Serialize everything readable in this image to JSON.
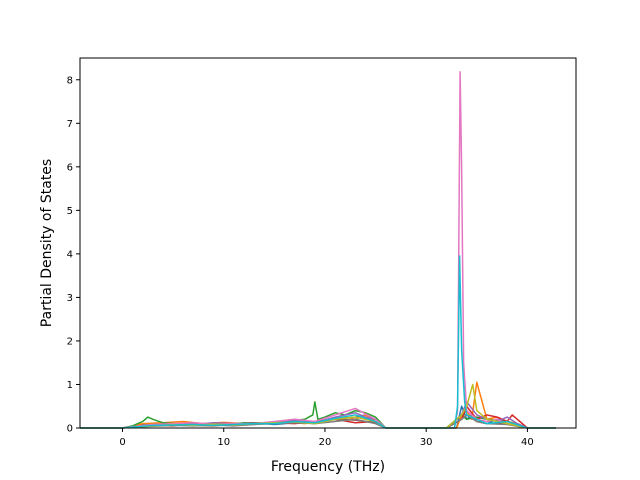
{
  "chart_data": {
    "type": "line",
    "title": "",
    "xlabel": "Frequency (THz)",
    "ylabel": "Partial Density of States",
    "xlim": [
      -4.2,
      44.8
    ],
    "ylim": [
      0,
      8.5
    ],
    "xticks": [
      0,
      10,
      20,
      30,
      40
    ],
    "yticks": [
      0,
      1,
      2,
      3,
      4,
      5,
      6,
      7,
      8
    ],
    "grid": false,
    "legend": "none",
    "colors": [
      "#1f77b4",
      "#ff7f0e",
      "#2ca02c",
      "#d62728",
      "#9467bd",
      "#8c564b",
      "#e377c2",
      "#7f7f7f",
      "#bcbd22",
      "#17becf"
    ],
    "series": [
      {
        "x": [
          -4.2,
          0,
          1,
          2,
          3,
          5,
          7,
          9,
          11,
          13,
          15,
          17,
          19,
          21,
          23,
          24,
          25,
          26,
          28,
          32,
          33.0,
          33.5,
          34.0,
          34.5,
          35,
          36,
          37,
          38,
          39,
          40,
          42.8
        ],
        "y": [
          0,
          0,
          0.03,
          0.08,
          0.1,
          0.07,
          0.09,
          0.06,
          0.1,
          0.12,
          0.08,
          0.12,
          0.15,
          0.2,
          0.25,
          0.3,
          0.2,
          0,
          0,
          0,
          0,
          0.5,
          0.2,
          0.3,
          0.15,
          0.1,
          0.2,
          0.15,
          0.1,
          0,
          0
        ]
      },
      {
        "x": [
          -4.2,
          0,
          1,
          2,
          4,
          6,
          8,
          10,
          12,
          14,
          16,
          18,
          20,
          22,
          23,
          24,
          25,
          26,
          28,
          32,
          33.0,
          33.5,
          34.0,
          34.5,
          35,
          36,
          37,
          38,
          39,
          40,
          42.8
        ],
        "y": [
          0,
          0,
          0.04,
          0.1,
          0.12,
          0.15,
          0.1,
          0.13,
          0.1,
          0.12,
          0.15,
          0.1,
          0.18,
          0.25,
          0.2,
          0.3,
          0.15,
          0,
          0,
          0,
          0,
          0.3,
          0.4,
          0.2,
          1.05,
          0.2,
          0.25,
          0.15,
          0.1,
          0,
          0
        ]
      },
      {
        "x": [
          -4.2,
          0,
          1,
          2,
          2.5,
          3,
          4,
          6,
          8,
          10,
          12,
          14,
          16,
          18,
          18.8,
          19,
          19.3,
          20,
          21,
          22,
          23,
          24,
          25,
          26,
          28,
          32,
          33.5,
          34,
          35,
          36,
          38,
          40,
          42.8
        ],
        "y": [
          0,
          0,
          0.05,
          0.15,
          0.25,
          0.2,
          0.12,
          0.08,
          0.1,
          0.07,
          0.12,
          0.1,
          0.15,
          0.2,
          0.3,
          0.6,
          0.2,
          0.25,
          0.35,
          0.3,
          0.4,
          0.35,
          0.25,
          0,
          0,
          0,
          0.3,
          0.2,
          0.25,
          0.2,
          0.15,
          0,
          0
        ]
      },
      {
        "x": [
          -4.2,
          0,
          1,
          3,
          5,
          7,
          9,
          11,
          13,
          15,
          17,
          19,
          21,
          23,
          25,
          26,
          28,
          32,
          33.5,
          34,
          35,
          36,
          37,
          38,
          38.5,
          39,
          40,
          42.8
        ],
        "y": [
          0,
          0,
          0.02,
          0.06,
          0.05,
          0.1,
          0.08,
          0.06,
          0.1,
          0.12,
          0.1,
          0.15,
          0.2,
          0.12,
          0.15,
          0,
          0,
          0,
          0.2,
          0.5,
          0.2,
          0.3,
          0.25,
          0.15,
          0.3,
          0.2,
          0,
          0
        ]
      },
      {
        "x": [
          -4.2,
          0,
          1,
          3,
          5,
          7,
          9,
          11,
          13,
          15,
          17,
          19,
          21,
          22,
          23,
          24,
          25,
          26,
          28,
          32,
          33.5,
          34,
          35,
          36,
          37,
          38,
          39,
          40,
          42.8
        ],
        "y": [
          0,
          0,
          0.03,
          0.07,
          0.1,
          0.08,
          0.12,
          0.1,
          0.08,
          0.14,
          0.18,
          0.12,
          0.25,
          0.3,
          0.35,
          0.25,
          0.2,
          0,
          0,
          0,
          0.3,
          0.6,
          0.3,
          0.2,
          0.15,
          0.25,
          0.1,
          0,
          0
        ]
      },
      {
        "x": [
          -4.2,
          0,
          1,
          3,
          5,
          7,
          9,
          11,
          13,
          15,
          17,
          19,
          21,
          23,
          25,
          26,
          28,
          32,
          33.5,
          34,
          35,
          36,
          38,
          40,
          42.8
        ],
        "y": [
          0,
          0,
          0.02,
          0.05,
          0.08,
          0.06,
          0.05,
          0.08,
          0.12,
          0.1,
          0.15,
          0.1,
          0.2,
          0.18,
          0.12,
          0,
          0,
          0,
          0.2,
          0.3,
          0.15,
          0.1,
          0.1,
          0,
          0
        ]
      },
      {
        "x": [
          -4.2,
          0,
          1,
          3,
          5,
          7,
          9,
          11,
          13,
          15,
          17,
          19,
          21,
          23,
          25,
          26,
          28,
          32.8,
          33.1,
          33.35,
          33.5,
          33.7,
          34,
          35,
          36,
          37,
          38,
          39,
          40,
          42.8
        ],
        "y": [
          0,
          0,
          0.03,
          0.08,
          0.1,
          0.12,
          0.08,
          0.1,
          0.1,
          0.15,
          0.2,
          0.15,
          0.3,
          0.45,
          0.2,
          0,
          0,
          0,
          0.4,
          8.18,
          6.0,
          1.5,
          0.4,
          0.2,
          0.15,
          0.2,
          0.1,
          0.05,
          0,
          0
        ]
      },
      {
        "x": [
          -4.2,
          0,
          1,
          3,
          5,
          7,
          9,
          11,
          13,
          15,
          17,
          19,
          21,
          23,
          25,
          26,
          28,
          32,
          33.5,
          34,
          35,
          36,
          38,
          40,
          42.8
        ],
        "y": [
          0,
          0,
          0.02,
          0.04,
          0.06,
          0.05,
          0.07,
          0.05,
          0.08,
          0.1,
          0.12,
          0.1,
          0.15,
          0.2,
          0.1,
          0,
          0,
          0,
          0.2,
          0.3,
          0.15,
          0.1,
          0.08,
          0,
          0
        ]
      },
      {
        "x": [
          -4.2,
          0,
          1,
          3,
          5,
          7,
          9,
          11,
          13,
          15,
          17,
          19,
          21,
          23,
          25,
          26,
          28,
          32,
          33.5,
          34,
          34.6,
          35,
          36,
          37,
          38,
          40,
          42.8
        ],
        "y": [
          0,
          0,
          0.02,
          0.05,
          0.08,
          0.06,
          0.09,
          0.07,
          0.1,
          0.12,
          0.14,
          0.1,
          0.2,
          0.25,
          0.15,
          0,
          0,
          0,
          0.3,
          0.5,
          1.0,
          0.4,
          0.2,
          0.15,
          0.1,
          0,
          0
        ]
      },
      {
        "x": [
          -4.2,
          0,
          1,
          3,
          5,
          7,
          9,
          11,
          13,
          15,
          17,
          19,
          21,
          23,
          25,
          26,
          28,
          32.8,
          33.1,
          33.3,
          33.5,
          33.8,
          34,
          35,
          36,
          38,
          40,
          42.8
        ],
        "y": [
          0,
          0,
          0.02,
          0.06,
          0.07,
          0.08,
          0.06,
          0.08,
          0.1,
          0.1,
          0.15,
          0.12,
          0.22,
          0.3,
          0.15,
          0,
          0,
          0,
          0.5,
          3.95,
          1.8,
          0.6,
          0.3,
          0.2,
          0.1,
          0.15,
          0,
          0
        ]
      }
    ]
  }
}
